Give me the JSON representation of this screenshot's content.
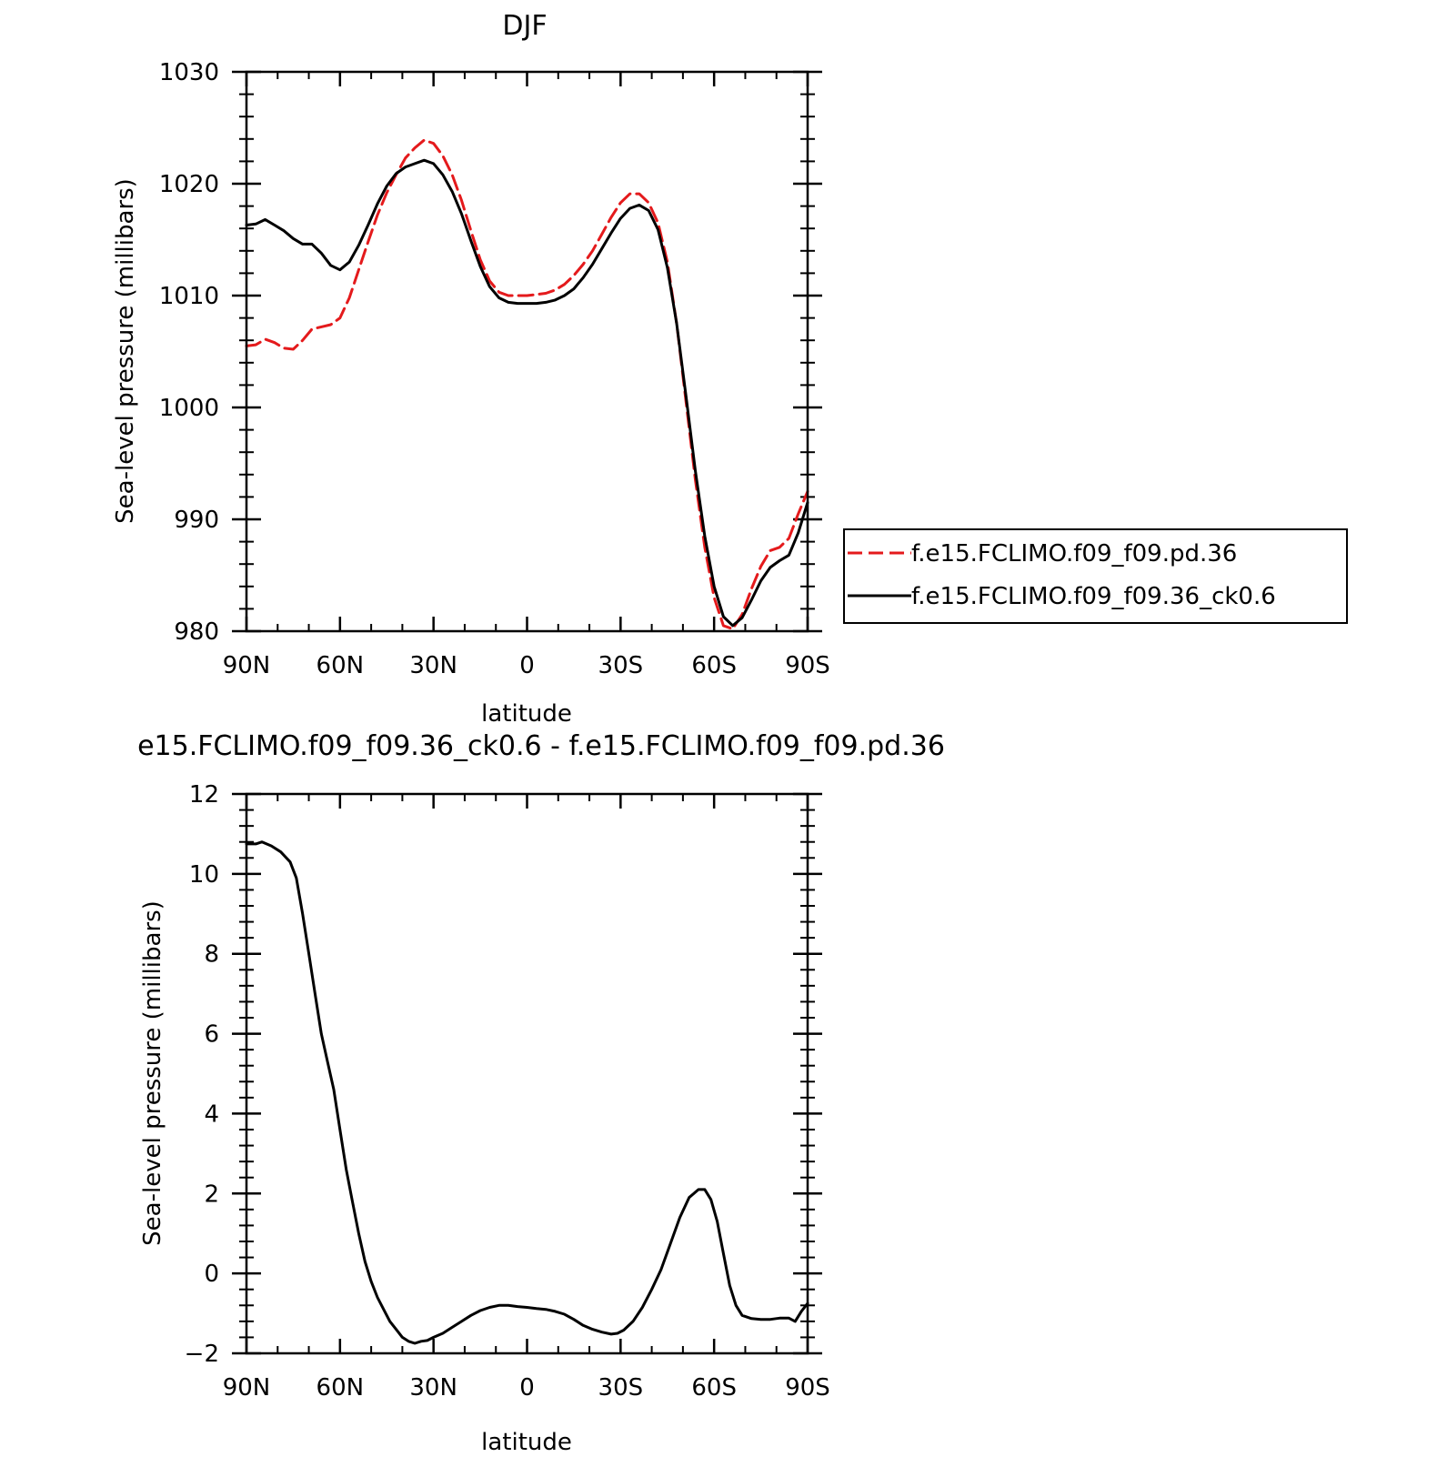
{
  "chart_data": [
    {
      "type": "line",
      "title": "DJF",
      "xlabel": "latitude",
      "ylabel": "Sea-level pressure (millibars)",
      "xlim": [
        -90,
        90
      ],
      "ylim": [
        980,
        1030
      ],
      "x_ticks": [
        {
          "value": -90,
          "label": "90N"
        },
        {
          "value": -60,
          "label": "60N"
        },
        {
          "value": -30,
          "label": "30N"
        },
        {
          "value": 0,
          "label": "0"
        },
        {
          "value": 30,
          "label": "30S"
        },
        {
          "value": 60,
          "label": "60S"
        },
        {
          "value": 90,
          "label": "90S"
        }
      ],
      "y_ticks": [
        {
          "value": 980,
          "label": "980"
        },
        {
          "value": 990,
          "label": "990"
        },
        {
          "value": 1000,
          "label": "1000"
        },
        {
          "value": 1010,
          "label": "1010"
        },
        {
          "value": 1020,
          "label": "1020"
        },
        {
          "value": 1030,
          "label": "1030"
        }
      ],
      "grid": false,
      "legend_position": "right",
      "series": [
        {
          "name": "f.e15.FCLIMO.f09_f09.pd.36",
          "color": "#e41a1c",
          "dash": "dashed",
          "points": [
            [
              -90,
              1005.5
            ],
            [
              -87,
              1005.6
            ],
            [
              -84,
              1006.1
            ],
            [
              -81,
              1005.8
            ],
            [
              -78,
              1005.3
            ],
            [
              -75,
              1005.2
            ],
            [
              -72,
              1006.0
            ],
            [
              -69,
              1007.0
            ],
            [
              -66,
              1007.2
            ],
            [
              -63,
              1007.4
            ],
            [
              -60,
              1008.0
            ],
            [
              -57,
              1009.8
            ],
            [
              -54,
              1012.3
            ],
            [
              -51,
              1014.8
            ],
            [
              -48,
              1017.2
            ],
            [
              -45,
              1019.2
            ],
            [
              -42,
              1020.8
            ],
            [
              -39,
              1022.3
            ],
            [
              -36,
              1023.2
            ],
            [
              -33,
              1023.9
            ],
            [
              -30,
              1023.6
            ],
            [
              -27,
              1022.5
            ],
            [
              -24,
              1020.8
            ],
            [
              -21,
              1018.5
            ],
            [
              -18,
              1015.8
            ],
            [
              -15,
              1013.2
            ],
            [
              -12,
              1011.3
            ],
            [
              -9,
              1010.3
            ],
            [
              -6,
              1010.0
            ],
            [
              -3,
              1010.0
            ],
            [
              0,
              1010.0
            ],
            [
              3,
              1010.1
            ],
            [
              6,
              1010.2
            ],
            [
              9,
              1010.5
            ],
            [
              12,
              1011.0
            ],
            [
              15,
              1011.8
            ],
            [
              18,
              1012.8
            ],
            [
              21,
              1014.0
            ],
            [
              24,
              1015.5
            ],
            [
              27,
              1017.0
            ],
            [
              30,
              1018.3
            ],
            [
              33,
              1019.1
            ],
            [
              36,
              1019.1
            ],
            [
              39,
              1018.3
            ],
            [
              42,
              1016.5
            ],
            [
              45,
              1013.0
            ],
            [
              48,
              1007.5
            ],
            [
              51,
              1000.5
            ],
            [
              54,
              993.5
            ],
            [
              57,
              987.5
            ],
            [
              60,
              983.0
            ],
            [
              63,
              980.5
            ],
            [
              66,
              980.2
            ],
            [
              69,
              981.5
            ],
            [
              72,
              983.8
            ],
            [
              75,
              985.8
            ],
            [
              78,
              987.2
            ],
            [
              81,
              987.5
            ],
            [
              84,
              988.3
            ],
            [
              87,
              990.5
            ],
            [
              90,
              992.5
            ]
          ]
        },
        {
          "name": "f.e15.FCLIMO.f09_f09.36_ck0.6",
          "color": "#000000",
          "dash": "solid",
          "points": [
            [
              -90,
              1016.3
            ],
            [
              -87,
              1016.4
            ],
            [
              -84,
              1016.8
            ],
            [
              -81,
              1016.3
            ],
            [
              -78,
              1015.8
            ],
            [
              -75,
              1015.1
            ],
            [
              -72,
              1014.6
            ],
            [
              -69,
              1014.6
            ],
            [
              -66,
              1013.8
            ],
            [
              -63,
              1012.7
            ],
            [
              -60,
              1012.3
            ],
            [
              -57,
              1013.0
            ],
            [
              -54,
              1014.5
            ],
            [
              -51,
              1016.3
            ],
            [
              -48,
              1018.2
            ],
            [
              -45,
              1019.8
            ],
            [
              -42,
              1020.9
            ],
            [
              -39,
              1021.5
            ],
            [
              -36,
              1021.8
            ],
            [
              -33,
              1022.1
            ],
            [
              -30,
              1021.8
            ],
            [
              -27,
              1020.8
            ],
            [
              -24,
              1019.3
            ],
            [
              -21,
              1017.3
            ],
            [
              -18,
              1014.9
            ],
            [
              -15,
              1012.6
            ],
            [
              -12,
              1010.8
            ],
            [
              -9,
              1009.8
            ],
            [
              -6,
              1009.4
            ],
            [
              -3,
              1009.3
            ],
            [
              0,
              1009.3
            ],
            [
              3,
              1009.3
            ],
            [
              6,
              1009.4
            ],
            [
              9,
              1009.6
            ],
            [
              12,
              1010.0
            ],
            [
              15,
              1010.6
            ],
            [
              18,
              1011.6
            ],
            [
              21,
              1012.8
            ],
            [
              24,
              1014.2
            ],
            [
              27,
              1015.6
            ],
            [
              30,
              1016.9
            ],
            [
              33,
              1017.8
            ],
            [
              36,
              1018.1
            ],
            [
              39,
              1017.6
            ],
            [
              42,
              1015.9
            ],
            [
              45,
              1012.5
            ],
            [
              48,
              1007.5
            ],
            [
              51,
              1001.0
            ],
            [
              54,
              994.3
            ],
            [
              57,
              988.5
            ],
            [
              60,
              984.0
            ],
            [
              63,
              981.3
            ],
            [
              66,
              980.5
            ],
            [
              69,
              981.2
            ],
            [
              72,
              982.8
            ],
            [
              75,
              984.5
            ],
            [
              78,
              985.7
            ],
            [
              81,
              986.3
            ],
            [
              84,
              986.8
            ],
            [
              87,
              988.8
            ],
            [
              90,
              991.5
            ]
          ]
        }
      ]
    },
    {
      "type": "line",
      "title": "e15.FCLIMO.f09_f09.36_ck0.6 - f.e15.FCLIMO.f09_f09.pd.36",
      "xlabel": "latitude",
      "ylabel": "Sea-level pressure (millibars)",
      "xlim": [
        -90,
        90
      ],
      "ylim": [
        -2,
        12
      ],
      "x_ticks": [
        {
          "value": -90,
          "label": "90N"
        },
        {
          "value": -60,
          "label": "60N"
        },
        {
          "value": -30,
          "label": "30N"
        },
        {
          "value": 0,
          "label": "0"
        },
        {
          "value": 30,
          "label": "30S"
        },
        {
          "value": 60,
          "label": "60S"
        },
        {
          "value": 90,
          "label": "90S"
        }
      ],
      "y_ticks": [
        {
          "value": -2,
          "label": "−2"
        },
        {
          "value": 0,
          "label": "0"
        },
        {
          "value": 2,
          "label": "2"
        },
        {
          "value": 4,
          "label": "4"
        },
        {
          "value": 6,
          "label": "6"
        },
        {
          "value": 8,
          "label": "8"
        },
        {
          "value": 10,
          "label": "10"
        },
        {
          "value": 12,
          "label": "12"
        }
      ],
      "grid": false,
      "series": [
        {
          "color": "#000000",
          "dash": "solid",
          "points": [
            [
              -90,
              10.75
            ],
            [
              -87,
              10.75
            ],
            [
              -85,
              10.8
            ],
            [
              -82,
              10.7
            ],
            [
              -79,
              10.55
            ],
            [
              -76,
              10.3
            ],
            [
              -74,
              9.9
            ],
            [
              -72,
              9.0
            ],
            [
              -70,
              8.0
            ],
            [
              -68,
              7.0
            ],
            [
              -66,
              6.0
            ],
            [
              -64,
              5.3
            ],
            [
              -62,
              4.6
            ],
            [
              -60,
              3.6
            ],
            [
              -58,
              2.6
            ],
            [
              -56,
              1.8
            ],
            [
              -54,
              1.0
            ],
            [
              -52,
              0.3
            ],
            [
              -50,
              -0.2
            ],
            [
              -48,
              -0.6
            ],
            [
              -46,
              -0.9
            ],
            [
              -44,
              -1.2
            ],
            [
              -42,
              -1.4
            ],
            [
              -40,
              -1.6
            ],
            [
              -38,
              -1.7
            ],
            [
              -36,
              -1.75
            ],
            [
              -34,
              -1.7
            ],
            [
              -32,
              -1.68
            ],
            [
              -30,
              -1.6
            ],
            [
              -27,
              -1.5
            ],
            [
              -24,
              -1.35
            ],
            [
              -21,
              -1.2
            ],
            [
              -18,
              -1.05
            ],
            [
              -15,
              -0.93
            ],
            [
              -12,
              -0.85
            ],
            [
              -9,
              -0.8
            ],
            [
              -6,
              -0.8
            ],
            [
              -3,
              -0.83
            ],
            [
              0,
              -0.85
            ],
            [
              3,
              -0.88
            ],
            [
              6,
              -0.9
            ],
            [
              9,
              -0.95
            ],
            [
              12,
              -1.02
            ],
            [
              15,
              -1.15
            ],
            [
              18,
              -1.3
            ],
            [
              21,
              -1.4
            ],
            [
              24,
              -1.47
            ],
            [
              27,
              -1.52
            ],
            [
              29,
              -1.5
            ],
            [
              31,
              -1.42
            ],
            [
              34,
              -1.2
            ],
            [
              37,
              -0.85
            ],
            [
              40,
              -0.4
            ],
            [
              43,
              0.1
            ],
            [
              46,
              0.75
            ],
            [
              49,
              1.4
            ],
            [
              52,
              1.9
            ],
            [
              55,
              2.1
            ],
            [
              57,
              2.1
            ],
            [
              59,
              1.85
            ],
            [
              61,
              1.3
            ],
            [
              63,
              0.5
            ],
            [
              65,
              -0.3
            ],
            [
              67,
              -0.8
            ],
            [
              69,
              -1.05
            ],
            [
              72,
              -1.13
            ],
            [
              75,
              -1.15
            ],
            [
              78,
              -1.15
            ],
            [
              81,
              -1.12
            ],
            [
              84,
              -1.12
            ],
            [
              86,
              -1.2
            ],
            [
              88,
              -0.95
            ],
            [
              90,
              -0.75
            ]
          ]
        }
      ]
    }
  ]
}
